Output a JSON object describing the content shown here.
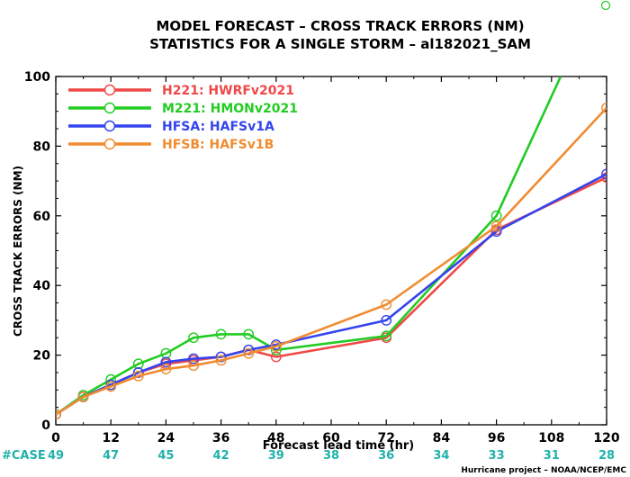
{
  "chart_data": {
    "type": "line",
    "title": "MODEL FORECAST – CROSS TRACK ERRORS (NM)",
    "subtitle": "STATISTICS FOR A SINGLE STORM – al182021_SAM",
    "xlabel": "Forecast lead time (hr)",
    "ylabel": "CROSS TRACK ERRORS (NM)",
    "xlim": [
      0,
      120
    ],
    "ylim": [
      0,
      100
    ],
    "xticks": [
      0,
      12,
      24,
      36,
      48,
      60,
      72,
      84,
      96,
      108,
      120
    ],
    "yticks": [
      0,
      20,
      40,
      60,
      80,
      100
    ],
    "grid": false,
    "legend_position": "top-left",
    "series": [
      {
        "name": "H221: HWRFv2021",
        "color": "#f04848",
        "x": [
          0,
          6,
          12,
          18,
          24,
          30,
          36,
          42,
          48,
          72,
          96,
          120
        ],
        "y": [
          3,
          8,
          11.5,
          15,
          17.5,
          18.5,
          19.5,
          21.5,
          19.5,
          25,
          56,
          71
        ]
      },
      {
        "name": "M221: HMONv2021",
        "color": "#22cc22",
        "x": [
          0,
          6,
          12,
          18,
          24,
          30,
          36,
          42,
          48,
          72,
          96,
          110
        ],
        "y": [
          3,
          8.5,
          13,
          17.5,
          20.5,
          25,
          26,
          26,
          21.5,
          25.5,
          60,
          100
        ]
      },
      {
        "name": "HFSA: HAFSv1A",
        "color": "#3344ee",
        "x": [
          0,
          6,
          12,
          18,
          24,
          30,
          36,
          42,
          48,
          72,
          96,
          120
        ],
        "y": [
          3,
          8,
          11.5,
          15,
          18,
          19,
          19.5,
          21.5,
          23,
          30,
          55.5,
          72
        ]
      },
      {
        "name": "HFSB: HAFSv1B",
        "color": "#f08c30",
        "x": [
          0,
          6,
          12,
          18,
          24,
          30,
          36,
          42,
          48,
          72,
          96,
          120
        ],
        "y": [
          3,
          8,
          11,
          14,
          16,
          17,
          18.5,
          20.5,
          22.5,
          34.5,
          57,
          91
        ]
      }
    ],
    "case_counts": {
      "label": "#CASE",
      "x": [
        0,
        12,
        24,
        36,
        48,
        60,
        72,
        84,
        96,
        108,
        120
      ],
      "counts": [
        "49",
        "47",
        "45",
        "42",
        "39",
        "38",
        "36",
        "34",
        "33",
        "31",
        "28"
      ]
    }
  },
  "credit": "Hurricane project – NOAA/NCEP/EMC",
  "colors": {
    "axis": "#000000",
    "case_text": "#20b2aa",
    "corner_marker": "#22cc22"
  }
}
